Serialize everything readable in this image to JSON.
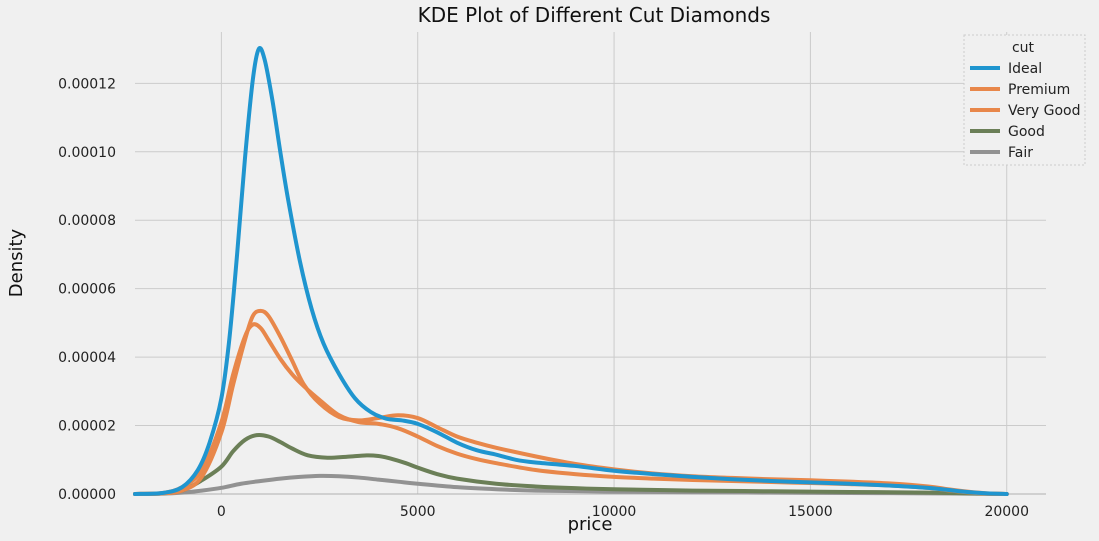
{
  "chart_data": {
    "type": "line",
    "title": "KDE Plot of Different Cut Diamonds",
    "xlabel": "price",
    "ylabel": "Density",
    "xlim": [
      -2200,
      21000
    ],
    "ylim": [
      0,
      0.000135
    ],
    "x_ticks": [
      0,
      5000,
      10000,
      15000,
      20000
    ],
    "x_tick_labels": [
      "0",
      "5000",
      "10000",
      "15000",
      "20000"
    ],
    "y_ticks": [
      0,
      2e-05,
      4e-05,
      6e-05,
      8e-05,
      0.0001,
      0.00012
    ],
    "y_tick_labels": [
      "0.00000",
      "0.00002",
      "0.00004",
      "0.00006",
      "0.00008",
      "0.00010",
      "0.00012"
    ],
    "grid": true,
    "legend": {
      "title": "cut",
      "position": "top-right"
    },
    "series": [
      {
        "name": "Ideal",
        "color": "#1f95cf",
        "x": [
          -2200,
          -1500,
          -1000,
          -600,
          -300,
          0,
          200,
          400,
          600,
          800,
          950,
          1100,
          1300,
          1500,
          1700,
          2000,
          2300,
          2600,
          3000,
          3400,
          3800,
          4200,
          4600,
          5000,
          5500,
          6000,
          6500,
          7000,
          7500,
          8000,
          9000,
          10000,
          11000,
          12000,
          13000,
          14000,
          15000,
          16000,
          17000,
          18000,
          18500,
          19000,
          19500,
          20000
        ],
        "y": [
          0,
          3e-07,
          2e-06,
          7e-06,
          1.5e-05,
          2.8e-05,
          4.5e-05,
          7e-05,
          9.8e-05,
          0.000121,
          0.00013,
          0.000127,
          0.000115,
          0.0001,
          8.6e-05,
          6.8e-05,
          5.4e-05,
          4.4e-05,
          3.5e-05,
          2.8e-05,
          2.4e-05,
          2.2e-05,
          2.15e-05,
          2.05e-05,
          1.8e-05,
          1.5e-05,
          1.28e-05,
          1.15e-05,
          1e-05,
          9.2e-06,
          8.2e-06,
          6.8e-06,
          5.8e-06,
          5e-06,
          4.3e-06,
          3.8e-06,
          3.4e-06,
          3e-06,
          2.5e-06,
          1.8e-06,
          1.2e-06,
          6e-07,
          2e-07,
          0
        ]
      },
      {
        "name": "Premium",
        "color": "#e8874a",
        "x": [
          -2200,
          -1500,
          -1000,
          -500,
          0,
          300,
          600,
          800,
          1000,
          1200,
          1500,
          1800,
          2100,
          2500,
          3000,
          3500,
          4000,
          4500,
          5000,
          5500,
          6000,
          6500,
          7000,
          8000,
          9000,
          10000,
          11000,
          12000,
          13000,
          14000,
          15000,
          16000,
          17000,
          18000,
          18500,
          19000,
          19500,
          20000
        ],
        "y": [
          0,
          2e-07,
          1e-06,
          5e-06,
          1.8e-05,
          3.2e-05,
          4.5e-05,
          5.2e-05,
          5.35e-05,
          5.2e-05,
          4.6e-05,
          3.9e-05,
          3.2e-05,
          2.65e-05,
          2.25e-05,
          2.15e-05,
          2.22e-05,
          2.3e-05,
          2.22e-05,
          1.95e-05,
          1.68e-05,
          1.5e-05,
          1.35e-05,
          1.1e-05,
          8.8e-06,
          7.2e-06,
          6e-06,
          5.2e-06,
          4.7e-06,
          4.3e-06,
          4e-06,
          3.6e-06,
          3.1e-06,
          2.2e-06,
          1.4e-06,
          7e-07,
          2e-07,
          0
        ]
      },
      {
        "name": "Very Good",
        "color": "#e8874a",
        "x": [
          -2200,
          -1500,
          -1000,
          -500,
          0,
          300,
          600,
          800,
          1000,
          1200,
          1500,
          1800,
          2100,
          2500,
          3000,
          3500,
          4000,
          4500,
          5000,
          5500,
          6000,
          6500,
          7000,
          8000,
          9000,
          10000,
          11000,
          12000,
          13000,
          14000,
          15000,
          16000,
          17000,
          18000,
          18500,
          19000,
          19500,
          20000
        ],
        "y": [
          0,
          3e-07,
          2e-06,
          7e-06,
          2.1e-05,
          3.5e-05,
          4.6e-05,
          4.95e-05,
          4.85e-05,
          4.5e-05,
          3.95e-05,
          3.5e-05,
          3.15e-05,
          2.75e-05,
          2.3e-05,
          2.1e-05,
          2.05e-05,
          1.92e-05,
          1.68e-05,
          1.4e-05,
          1.18e-05,
          1.02e-05,
          9e-06,
          7e-06,
          5.8e-06,
          5e-06,
          4.5e-06,
          4.1e-06,
          3.8e-06,
          3.5e-06,
          3.2e-06,
          2.9e-06,
          2.5e-06,
          1.8e-06,
          1.1e-06,
          5e-07,
          1e-07,
          0
        ]
      },
      {
        "name": "Good",
        "color": "#6b7f57",
        "x": [
          -2200,
          -1500,
          -1000,
          -500,
          0,
          300,
          600,
          900,
          1200,
          1500,
          1800,
          2200,
          2700,
          3200,
          3700,
          4000,
          4300,
          4700,
          5000,
          5500,
          6000,
          7000,
          8000,
          9000,
          10000,
          12000,
          14000,
          16000,
          18000,
          19000,
          20000
        ],
        "y": [
          0,
          2e-07,
          1e-06,
          4e-06,
          8e-06,
          1.25e-05,
          1.58e-05,
          1.72e-05,
          1.68e-05,
          1.52e-05,
          1.33e-05,
          1.13e-05,
          1.06e-05,
          1.09e-05,
          1.13e-05,
          1.11e-05,
          1.04e-05,
          9e-06,
          7.7e-06,
          5.8e-06,
          4.5e-06,
          3e-06,
          2.2e-06,
          1.7e-06,
          1.4e-06,
          1e-06,
          8e-07,
          6e-07,
          4e-07,
          2e-07,
          0
        ]
      },
      {
        "name": "Fair",
        "color": "#929292",
        "x": [
          -2200,
          -1500,
          -1000,
          -500,
          0,
          500,
          1000,
          1500,
          2000,
          2500,
          3000,
          3500,
          4000,
          4500,
          5000,
          6000,
          7000,
          8000,
          10000,
          12000,
          14000,
          16000,
          18000,
          19000,
          20000
        ],
        "y": [
          0,
          1e-07,
          4e-07,
          1e-06,
          1.8e-06,
          3e-06,
          3.8e-06,
          4.5e-06,
          5e-06,
          5.3e-06,
          5.2e-06,
          4.8e-06,
          4.2e-06,
          3.6e-06,
          3e-06,
          2e-06,
          1.4e-06,
          1e-06,
          7e-07,
          5e-07,
          4e-07,
          3e-07,
          2e-07,
          1e-07,
          0
        ]
      }
    ]
  }
}
